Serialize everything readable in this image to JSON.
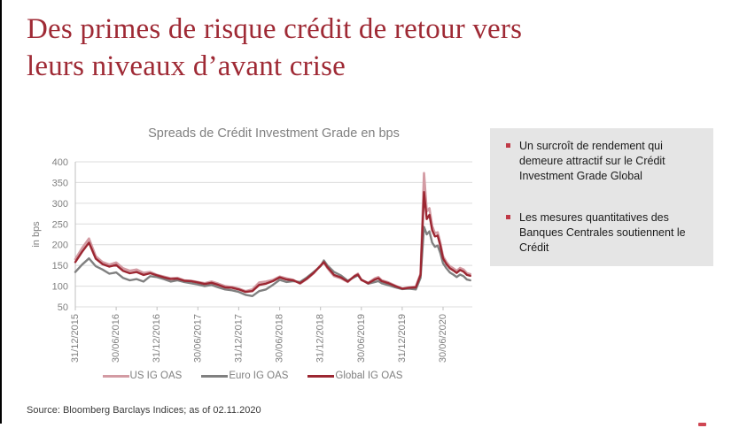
{
  "slide": {
    "title_line1": "Des primes de risque crédit de retour vers",
    "title_line2": "leurs niveaux d’avant crise",
    "title_color": "#9f2a35"
  },
  "chart_data": {
    "type": "line",
    "title": "Spreads de Crédit Investment Grade en bps",
    "xlabel": "",
    "ylabel": "in bps",
    "ylim": [
      50,
      400
    ],
    "ytick_step": 50,
    "grid": true,
    "legend_position": "bottom",
    "x_unit": "months since 31/12/2015",
    "x_tick_months": [
      0,
      6,
      12,
      18,
      24,
      30,
      36,
      42,
      48,
      54
    ],
    "x_tick_labels": [
      "31/12/2015",
      "30/06/2016",
      "31/12/2016",
      "30/06/2017",
      "31/12/2017",
      "30/06/2018",
      "31/12/2018",
      "30/06/2019",
      "31/12/2019",
      "30/06/2020"
    ],
    "x": [
      0,
      1,
      2,
      3,
      4,
      5,
      6,
      7,
      8,
      9,
      10,
      11,
      12,
      13,
      14,
      15,
      16,
      17,
      18,
      19,
      20,
      21,
      22,
      23,
      24,
      25,
      26,
      27,
      28,
      29,
      30,
      31,
      32,
      33,
      34,
      35,
      36,
      36.5,
      37,
      38,
      39,
      40,
      41,
      41.5,
      42,
      43,
      44,
      44.5,
      45,
      46,
      47,
      48,
      49,
      50,
      50.7,
      51.2,
      51.6,
      52,
      52.4,
      52.8,
      53.2,
      53.6,
      54,
      54.5,
      55,
      55.5,
      56,
      56.5,
      57,
      57.5,
      58
    ],
    "series": [
      {
        "name": "US IG OAS",
        "color": "#d39ba3",
        "width": 2.6,
        "values": [
          165,
          192,
          215,
          172,
          158,
          152,
          157,
          143,
          137,
          140,
          132,
          134,
          127,
          123,
          119,
          120,
          114,
          113,
          110,
          107,
          111,
          106,
          100,
          98,
          94,
          88,
          92,
          109,
          111,
          115,
          123,
          119,
          115,
          106,
          117,
          131,
          150,
          157,
          144,
          124,
          119,
          110,
          125,
          130,
          115,
          108,
          119,
          122,
          114,
          109,
          101,
          94,
          97,
          99,
          130,
          373,
          280,
          288,
          245,
          228,
          230,
          205,
          172,
          158,
          148,
          143,
          137,
          144,
          140,
          131,
          129
        ]
      },
      {
        "name": "Euro IG OAS",
        "color": "#808080",
        "width": 2.4,
        "values": [
          134,
          152,
          167,
          148,
          140,
          130,
          133,
          120,
          114,
          117,
          111,
          124,
          122,
          117,
          111,
          114,
          110,
          107,
          104,
          100,
          103,
          97,
          92,
          90,
          86,
          79,
          76,
          88,
          92,
          103,
          115,
          110,
          112,
          110,
          121,
          134,
          148,
          162,
          150,
          134,
          126,
          113,
          122,
          126,
          116,
          106,
          110,
          112,
          107,
          102,
          97,
          93,
          94,
          92,
          120,
          243,
          225,
          232,
          205,
          195,
          198,
          180,
          155,
          143,
          133,
          128,
          122,
          128,
          124,
          116,
          114
        ]
      },
      {
        "name": "Global IG OAS",
        "color": "#9c2732",
        "width": 2.4,
        "values": [
          158,
          183,
          205,
          166,
          153,
          147,
          151,
          137,
          131,
          134,
          127,
          131,
          126,
          121,
          117,
          118,
          113,
          112,
          109,
          105,
          108,
          103,
          97,
          96,
          92,
          86,
          88,
          103,
          106,
          112,
          121,
          116,
          114,
          107,
          118,
          132,
          149,
          158,
          146,
          127,
          121,
          111,
          124,
          128,
          115,
          107,
          116,
          119,
          112,
          107,
          100,
          94,
          96,
          97,
          127,
          327,
          262,
          272,
          235,
          220,
          222,
          198,
          167,
          153,
          143,
          138,
          132,
          139,
          135,
          127,
          125
        ]
      }
    ]
  },
  "info_box": {
    "bg": "#e5e5e5",
    "bullet_color": "#c03a47",
    "bullets": [
      "Un surcroît de rendement qui demeure attractif sur le Crédit Investment Grade Global",
      "Les mesures quantitatives des Banques Centrales soutiennent le Crédit"
    ]
  },
  "footer": {
    "source": "Source: Bloomberg Barclays Indices; as of 02.11.2020"
  }
}
